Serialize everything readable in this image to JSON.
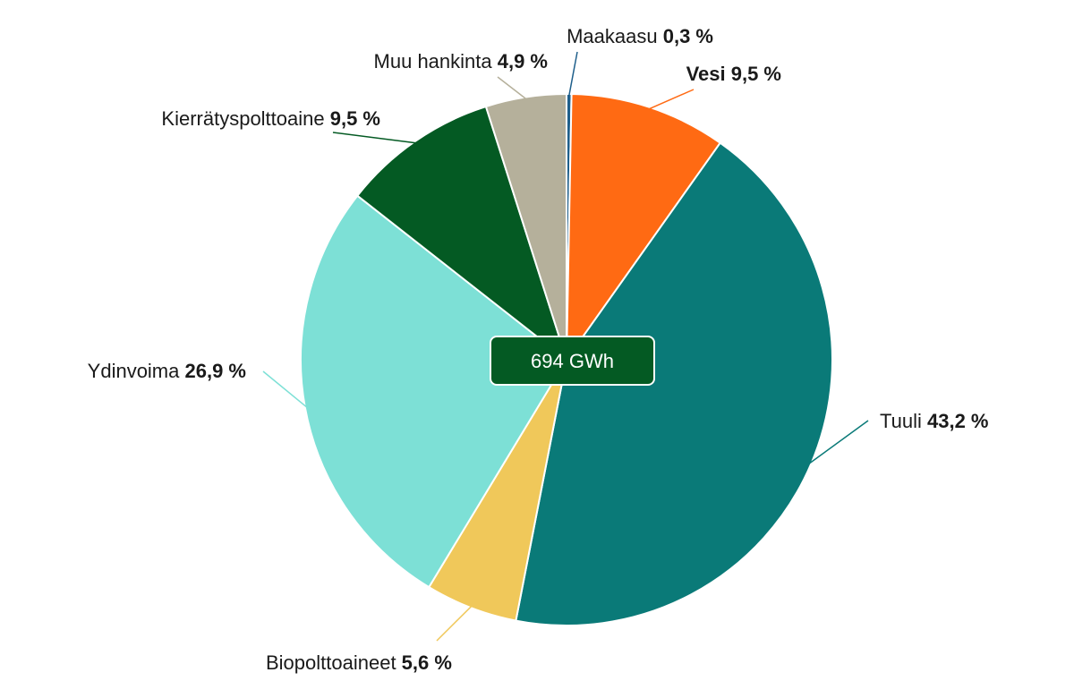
{
  "chart_data": {
    "type": "pie",
    "center_label": "694 GWh",
    "slices": [
      {
        "label": "Maakaasu",
        "value": 0.3,
        "value_text": "0,3 %",
        "color": "#1f5f8b"
      },
      {
        "label": "Vesi",
        "value": 9.5,
        "value_text": "9,5 %",
        "color": "#ff6a13",
        "label_bold": true
      },
      {
        "label": "Tuuli",
        "value": 43.2,
        "value_text": "43,2 %",
        "color": "#0a7a78"
      },
      {
        "label": "Biopolttoaineet",
        "value": 5.6,
        "value_text": "5,6 %",
        "color": "#f0c85a"
      },
      {
        "label": "Ydinvoima",
        "value": 26.9,
        "value_text": "26,9 %",
        "color": "#7de0d6"
      },
      {
        "label": "Kierrätyspolttoaine",
        "value": 9.5,
        "value_text": "9,5 %",
        "color": "#045a23"
      },
      {
        "label": "Muu hankinta",
        "value": 4.9,
        "value_text": "4,9 %",
        "color": "#b5b09b"
      }
    ],
    "center_box_color": "#045a23"
  }
}
